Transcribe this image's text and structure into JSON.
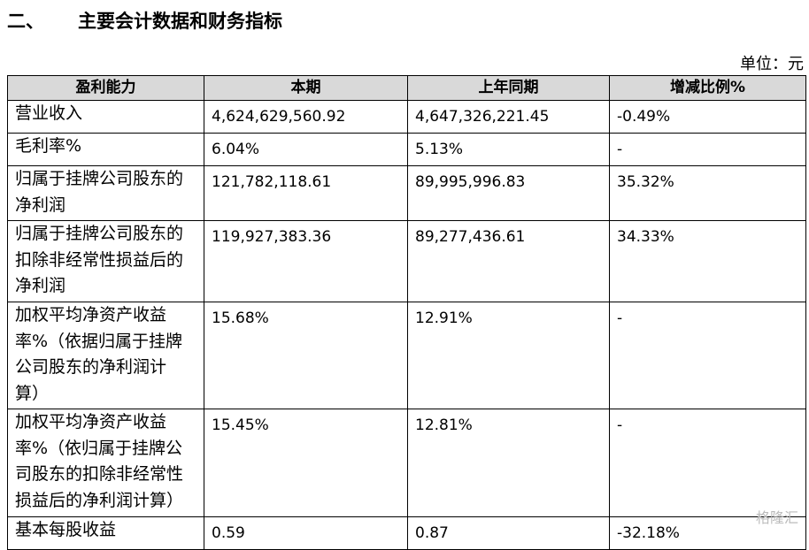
{
  "header": {
    "number": "二、",
    "title": "主要会计数据和财务指标"
  },
  "unit": "单位：元",
  "table": {
    "columns": [
      "盈利能力",
      "本期",
      "上年同期",
      "增减比例%"
    ],
    "rows": [
      [
        [
          "营业收入"
        ],
        "4,624,629,560.92",
        "4,647,326,221.45",
        "-0.49%"
      ],
      [
        [
          "毛利率%"
        ],
        "6.04%",
        "5.13%",
        "-"
      ],
      [
        [
          "归属于挂牌公司股东的",
          "净利润"
        ],
        "121,782,118.61",
        "89,995,996.83",
        "35.32%"
      ],
      [
        [
          "归属于挂牌公司股东的",
          "扣除非经常性损益后的",
          "净利润"
        ],
        "119,927,383.36",
        "89,277,436.61",
        "34.33%"
      ],
      [
        [
          "加权平均净资产收益",
          "率%（依据归属于挂牌",
          "公司股东的净利润计",
          "算）"
        ],
        "15.68%",
        "12.91%",
        "-"
      ],
      [
        [
          "加权平均净资产收益",
          "率%（依归属于挂牌公",
          "司股东的扣除非经常性",
          "损益后的净利润计算）"
        ],
        "15.45%",
        "12.81%",
        "-"
      ],
      [
        [
          "基本每股收益"
        ],
        "0.59",
        "0.87",
        "-32.18%"
      ]
    ]
  },
  "watermark": "格隆汇"
}
